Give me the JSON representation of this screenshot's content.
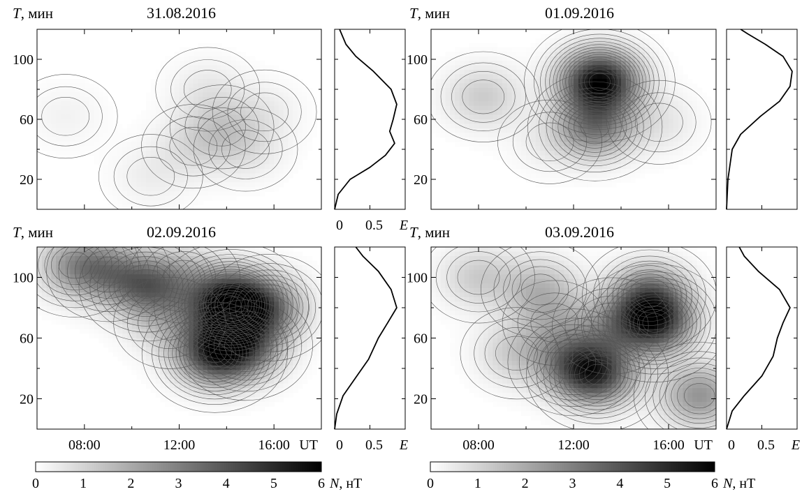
{
  "chart_data": [
    {
      "type": "heatmap",
      "title": "31.08.2016",
      "ylabel_var": "T",
      "ylabel_unit": ", мин",
      "xlim": [
        6,
        18
      ],
      "ylim": [
        0,
        120
      ],
      "yticks": [
        20,
        60,
        100
      ],
      "xticks": [
        8,
        12,
        16
      ],
      "xtick_labels": [
        "08:00",
        "12:00",
        "16:00"
      ],
      "xunit": "UT",
      "blobs": [
        {
          "x": 13.8,
          "y": 55,
          "amp": 0.9
        },
        {
          "x": 12.6,
          "y": 42,
          "amp": 0.7
        },
        {
          "x": 14.8,
          "y": 40,
          "amp": 0.6
        },
        {
          "x": 13.2,
          "y": 80,
          "amp": 0.5
        },
        {
          "x": 10.8,
          "y": 22,
          "amp": 0.4
        },
        {
          "x": 15.6,
          "y": 65,
          "amp": 0.4
        },
        {
          "x": 7.2,
          "y": 62,
          "amp": 0.3
        }
      ],
      "spectrum": {
        "xlabel": "E",
        "xticks": [
          0,
          0.5
        ],
        "xlim": [
          0,
          1
        ],
        "ylim": [
          0,
          120
        ],
        "points": [
          [
            0.0,
            0
          ],
          [
            0.05,
            10
          ],
          [
            0.22,
            20
          ],
          [
            0.5,
            28
          ],
          [
            0.72,
            36
          ],
          [
            0.85,
            44
          ],
          [
            0.78,
            52
          ],
          [
            0.83,
            60
          ],
          [
            0.88,
            70
          ],
          [
            0.8,
            80
          ],
          [
            0.55,
            92
          ],
          [
            0.3,
            102
          ],
          [
            0.16,
            110
          ],
          [
            0.07,
            120
          ]
        ]
      }
    },
    {
      "type": "heatmap",
      "title": "01.09.2016",
      "ylabel_var": "T",
      "ylabel_unit": ", мин",
      "xlim": [
        6,
        18
      ],
      "ylim": [
        0,
        120
      ],
      "yticks": [
        20,
        60,
        100
      ],
      "xticks": [
        8,
        12,
        16
      ],
      "xtick_labels": [
        "08:00",
        "12:00",
        "16:00"
      ],
      "xunit": "",
      "blobs": [
        {
          "x": 13.1,
          "y": 85,
          "amp": 5.8
        },
        {
          "x": 12.9,
          "y": 55,
          "amp": 3.0
        },
        {
          "x": 8.2,
          "y": 75,
          "amp": 1.2
        },
        {
          "x": 15.6,
          "y": 58,
          "amp": 0.6
        },
        {
          "x": 11.0,
          "y": 45,
          "amp": 0.4
        }
      ],
      "spectrum": {
        "xlabel": "",
        "xticks": [],
        "xlim": [
          0,
          1
        ],
        "ylim": [
          0,
          120
        ],
        "points": [
          [
            0.0,
            0
          ],
          [
            0.02,
            20
          ],
          [
            0.08,
            40
          ],
          [
            0.2,
            50
          ],
          [
            0.48,
            62
          ],
          [
            0.75,
            72
          ],
          [
            0.9,
            82
          ],
          [
            0.93,
            92
          ],
          [
            0.8,
            102
          ],
          [
            0.55,
            110
          ],
          [
            0.3,
            117
          ],
          [
            0.2,
            120
          ]
        ]
      }
    },
    {
      "type": "heatmap",
      "title": "02.09.2016",
      "ylabel_var": "T",
      "ylabel_unit": ", мин",
      "xlim": [
        6,
        18
      ],
      "ylim": [
        0,
        120
      ],
      "yticks": [
        20,
        60,
        100
      ],
      "xticks": [
        8,
        12,
        16
      ],
      "xtick_labels": [
        "08:00",
        "12:00",
        "16:00"
      ],
      "xunit": "UT",
      "blobs": [
        {
          "x": 14.2,
          "y": 82,
          "amp": 6.5
        },
        {
          "x": 13.5,
          "y": 50,
          "amp": 4.5
        },
        {
          "x": 14.8,
          "y": 55,
          "amp": 3.0
        },
        {
          "x": 10.6,
          "y": 94,
          "amp": 3.0
        },
        {
          "x": 7.6,
          "y": 108,
          "amp": 2.2
        },
        {
          "x": 9.0,
          "y": 104,
          "amp": 2.0
        },
        {
          "x": 15.8,
          "y": 80,
          "amp": 2.5
        },
        {
          "x": 12.2,
          "y": 100,
          "amp": 1.4
        },
        {
          "x": 11.6,
          "y": 70,
          "amp": 1.2
        }
      ],
      "spectrum": {
        "xlabel": "E",
        "xticks": [
          0,
          0.5
        ],
        "xlim": [
          0,
          1
        ],
        "ylim": [
          0,
          120
        ],
        "points": [
          [
            0.0,
            0
          ],
          [
            0.03,
            10
          ],
          [
            0.12,
            22
          ],
          [
            0.3,
            34
          ],
          [
            0.48,
            46
          ],
          [
            0.62,
            60
          ],
          [
            0.75,
            70
          ],
          [
            0.88,
            80
          ],
          [
            0.8,
            92
          ],
          [
            0.62,
            104
          ],
          [
            0.4,
            114
          ],
          [
            0.3,
            120
          ]
        ]
      }
    },
    {
      "type": "heatmap",
      "title": "03.09.2016",
      "ylabel_var": "T",
      "ylabel_unit": ", мин",
      "xlim": [
        6,
        18
      ],
      "ylim": [
        0,
        120
      ],
      "yticks": [
        20,
        60,
        100
      ],
      "xticks": [
        8,
        12,
        16
      ],
      "xtick_labels": [
        "08:00",
        "12:00",
        "16:00"
      ],
      "xunit": "UT",
      "blobs": [
        {
          "x": 15.4,
          "y": 70,
          "amp": 4.5
        },
        {
          "x": 13.0,
          "y": 36,
          "amp": 4.0
        },
        {
          "x": 12.0,
          "y": 44,
          "amp": 2.5
        },
        {
          "x": 15.2,
          "y": 88,
          "amp": 3.0
        },
        {
          "x": 17.3,
          "y": 22,
          "amp": 2.5
        },
        {
          "x": 10.6,
          "y": 92,
          "amp": 1.6
        },
        {
          "x": 9.6,
          "y": 50,
          "amp": 1.2
        },
        {
          "x": 8.0,
          "y": 100,
          "amp": 1.2
        },
        {
          "x": 13.6,
          "y": 68,
          "amp": 1.6
        },
        {
          "x": 11.2,
          "y": 70,
          "amp": 1.1
        }
      ],
      "spectrum": {
        "xlabel": "E",
        "xticks": [
          0,
          0.5
        ],
        "xlim": [
          0,
          1
        ],
        "ylim": [
          0,
          120
        ],
        "points": [
          [
            0.0,
            0
          ],
          [
            0.08,
            12
          ],
          [
            0.25,
            22
          ],
          [
            0.5,
            35
          ],
          [
            0.66,
            48
          ],
          [
            0.72,
            60
          ],
          [
            0.8,
            70
          ],
          [
            0.9,
            80
          ],
          [
            0.75,
            92
          ],
          [
            0.45,
            104
          ],
          [
            0.25,
            114
          ],
          [
            0.18,
            120
          ]
        ]
      }
    }
  ],
  "colorbar": {
    "min": 0,
    "max": 6,
    "ticks": [
      0,
      1,
      2,
      3,
      4,
      5,
      6
    ],
    "label_var": "N",
    "label_unit": ", нТ",
    "low_color": "#ffffff",
    "high_color": "#000000"
  }
}
